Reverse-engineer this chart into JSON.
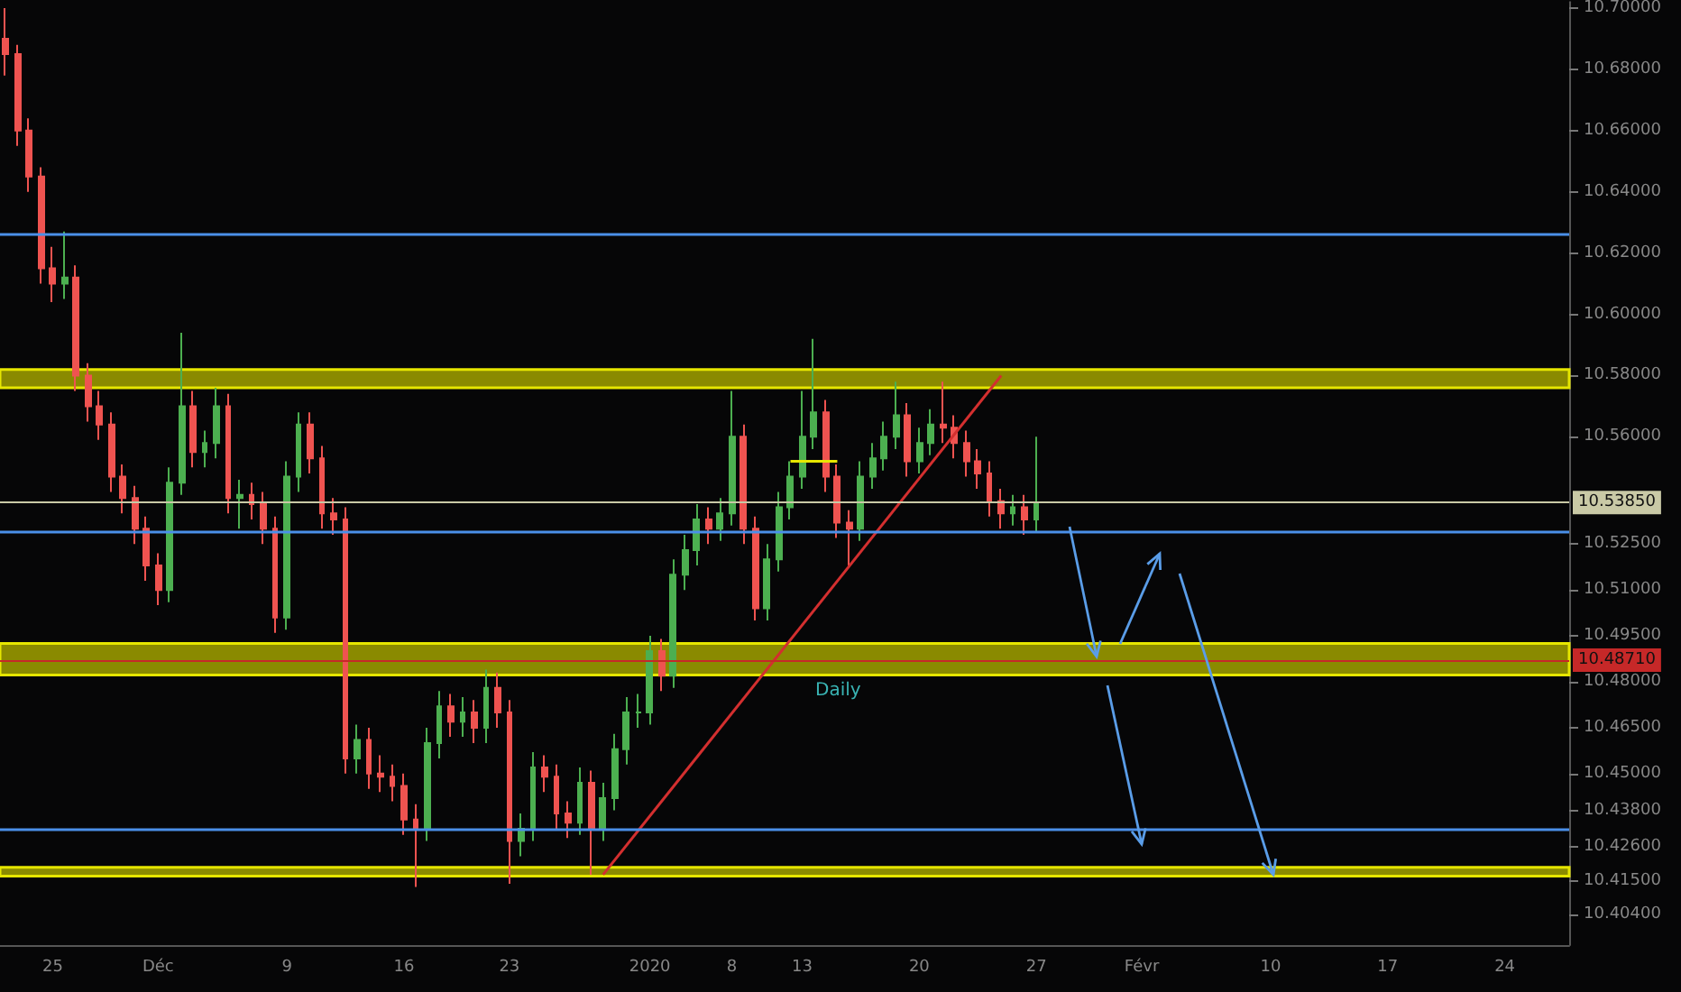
{
  "chart_data": {
    "type": "candlestick",
    "categories": [
      null,
      null,
      null,
      null,
      "25",
      null,
      null,
      null,
      null,
      null,
      null,
      null,
      null,
      "Déc",
      null,
      null,
      null,
      null,
      null,
      null,
      null,
      null,
      null,
      null,
      "9",
      null,
      null,
      null,
      null,
      null,
      null,
      null,
      null,
      null,
      "16",
      null,
      null,
      null,
      null,
      null,
      null,
      null,
      null,
      "23",
      null,
      null,
      null,
      null,
      null,
      null,
      null,
      null,
      null,
      null,
      null,
      "2020",
      null,
      null,
      null,
      null,
      null,
      null,
      "8",
      null,
      null,
      null,
      null,
      null,
      "13",
      null,
      null,
      null,
      null,
      null,
      null,
      null,
      null,
      null,
      "20",
      null,
      null,
      null,
      null,
      null,
      null,
      null,
      null,
      null,
      "27",
      null,
      null,
      null,
      null,
      null,
      null,
      null,
      null,
      "Févr",
      null,
      null,
      null,
      null,
      null,
      null,
      null,
      null,
      null,
      null,
      "10",
      null,
      null,
      null,
      null,
      null,
      null,
      null,
      null,
      null,
      "17",
      null,
      null,
      null,
      null,
      null,
      null,
      null,
      null,
      null,
      "24",
      null,
      null,
      null,
      null,
      null
    ],
    "ohlc": [
      [
        10.69,
        10.7,
        10.678,
        10.685
      ],
      [
        10.685,
        10.688,
        10.655,
        10.66
      ],
      [
        10.66,
        10.664,
        10.64,
        10.645
      ],
      [
        10.645,
        10.648,
        10.61,
        10.615
      ],
      [
        10.615,
        10.622,
        10.604,
        10.61
      ],
      [
        10.61,
        10.627,
        10.605,
        10.612
      ],
      [
        10.612,
        10.616,
        10.575,
        10.58
      ],
      [
        10.58,
        10.584,
        10.565,
        10.57
      ],
      [
        10.57,
        10.575,
        10.559,
        10.564
      ],
      [
        10.564,
        10.568,
        10.542,
        10.547
      ],
      [
        10.547,
        10.551,
        10.535,
        10.54
      ],
      [
        10.54,
        10.544,
        10.525,
        10.53
      ],
      [
        10.53,
        10.534,
        10.513,
        10.518
      ],
      [
        10.518,
        10.522,
        10.505,
        10.51
      ],
      [
        10.51,
        10.55,
        10.506,
        10.545
      ],
      [
        10.545,
        10.594,
        10.541,
        10.57
      ],
      [
        10.57,
        10.575,
        10.55,
        10.555
      ],
      [
        10.555,
        10.562,
        10.55,
        10.558
      ],
      [
        10.558,
        10.576,
        10.553,
        10.57
      ],
      [
        10.57,
        10.574,
        10.535,
        10.54
      ],
      [
        10.54,
        10.546,
        10.53,
        10.541
      ],
      [
        10.541,
        10.545,
        10.533,
        10.538
      ],
      [
        10.538,
        10.542,
        10.525,
        10.53
      ],
      [
        10.53,
        10.534,
        10.496,
        10.501
      ],
      [
        10.501,
        10.552,
        10.497,
        10.547
      ],
      [
        10.547,
        10.568,
        10.542,
        10.564
      ],
      [
        10.564,
        10.568,
        10.548,
        10.553
      ],
      [
        10.553,
        10.557,
        10.53,
        10.535
      ],
      [
        10.535,
        10.54,
        10.528,
        10.533
      ],
      [
        10.533,
        10.537,
        10.45,
        10.455
      ],
      [
        10.455,
        10.466,
        10.45,
        10.461
      ],
      [
        10.461,
        10.465,
        10.445,
        10.45
      ],
      [
        10.45,
        10.456,
        10.444,
        10.449
      ],
      [
        10.449,
        10.453,
        10.441,
        10.446
      ],
      [
        10.446,
        10.45,
        10.43,
        10.435
      ],
      [
        10.435,
        10.44,
        10.413,
        10.432
      ],
      [
        10.432,
        10.465,
        10.428,
        10.46
      ],
      [
        10.46,
        10.477,
        10.455,
        10.472
      ],
      [
        10.472,
        10.476,
        10.462,
        10.467
      ],
      [
        10.467,
        10.475,
        10.462,
        10.47
      ],
      [
        10.47,
        10.474,
        10.46,
        10.465
      ],
      [
        10.465,
        10.484,
        10.46,
        10.478
      ],
      [
        10.478,
        10.483,
        10.465,
        10.47
      ],
      [
        10.47,
        10.474,
        10.414,
        10.428
      ],
      [
        10.428,
        10.437,
        10.423,
        10.432
      ],
      [
        10.432,
        10.457,
        10.428,
        10.452
      ],
      [
        10.452,
        10.456,
        10.444,
        10.449
      ],
      [
        10.449,
        10.453,
        10.432,
        10.437
      ],
      [
        10.437,
        10.441,
        10.429,
        10.434
      ],
      [
        10.434,
        10.452,
        10.43,
        10.447
      ],
      [
        10.447,
        10.451,
        10.417,
        10.432
      ],
      [
        10.432,
        10.447,
        10.428,
        10.442
      ],
      [
        10.442,
        10.463,
        10.438,
        10.458
      ],
      [
        10.458,
        10.475,
        10.453,
        10.47
      ],
      [
        10.47,
        10.476,
        10.465,
        10.47
      ],
      [
        10.47,
        10.495,
        10.466,
        10.49
      ],
      [
        10.49,
        10.494,
        10.477,
        10.482
      ],
      [
        10.482,
        10.52,
        10.478,
        10.515
      ],
      [
        10.515,
        10.528,
        10.51,
        10.523
      ],
      [
        10.523,
        10.538,
        10.518,
        10.533
      ],
      [
        10.533,
        10.537,
        10.525,
        10.53
      ],
      [
        10.53,
        10.54,
        10.526,
        10.535
      ],
      [
        10.535,
        10.575,
        10.531,
        10.56
      ],
      [
        10.56,
        10.564,
        10.525,
        10.53
      ],
      [
        10.53,
        10.534,
        10.5,
        10.504
      ],
      [
        10.504,
        10.525,
        10.5,
        10.52
      ],
      [
        10.52,
        10.542,
        10.516,
        10.537
      ],
      [
        10.537,
        10.552,
        10.533,
        10.547
      ],
      [
        10.547,
        10.575,
        10.543,
        10.56
      ],
      [
        10.56,
        10.592,
        10.556,
        10.568
      ],
      [
        10.568,
        10.572,
        10.542,
        10.547
      ],
      [
        10.547,
        10.551,
        10.527,
        10.532
      ],
      [
        10.532,
        10.536,
        10.518,
        10.53
      ],
      [
        10.53,
        10.552,
        10.526,
        10.547
      ],
      [
        10.547,
        10.558,
        10.543,
        10.553
      ],
      [
        10.553,
        10.565,
        10.549,
        10.56
      ],
      [
        10.56,
        10.578,
        10.556,
        10.567
      ],
      [
        10.567,
        10.571,
        10.547,
        10.552
      ],
      [
        10.552,
        10.563,
        10.548,
        10.558
      ],
      [
        10.558,
        10.569,
        10.554,
        10.564
      ],
      [
        10.564,
        10.578,
        10.558,
        10.563
      ],
      [
        10.563,
        10.567,
        10.553,
        10.558
      ],
      [
        10.558,
        10.562,
        10.547,
        10.552
      ],
      [
        10.552,
        10.556,
        10.543,
        10.548
      ],
      [
        10.548,
        10.552,
        10.534,
        10.539
      ],
      [
        10.539,
        10.543,
        10.53,
        10.535
      ],
      [
        10.535,
        10.541,
        10.531,
        10.537
      ],
      [
        10.537,
        10.541,
        10.528,
        10.533
      ],
      [
        10.533,
        10.56,
        10.529,
        10.5385
      ],
      null,
      null,
      null,
      null,
      null,
      null,
      null,
      null,
      null,
      null,
      null,
      null,
      null,
      null,
      null,
      null,
      null,
      null,
      null,
      null,
      null,
      null,
      null,
      null,
      null,
      null,
      null,
      null,
      null,
      null,
      null,
      null,
      null,
      null,
      null,
      null,
      null,
      null,
      null,
      null,
      null,
      null,
      null,
      null,
      null
    ],
    "series": [
      {
        "type": "line",
        "color": "#d32f2f",
        "values": [
          null,
          null,
          null,
          null,
          null,
          null,
          null,
          null,
          null,
          null,
          null,
          null,
          null,
          null,
          null,
          null,
          null,
          null,
          null,
          null,
          null,
          null,
          null,
          null,
          null,
          null,
          null,
          null,
          null,
          null,
          null,
          null,
          null,
          null,
          null,
          null,
          null,
          null,
          null,
          null,
          null,
          null,
          null,
          null,
          null,
          null,
          null,
          null,
          null,
          null,
          null,
          10.417,
          null,
          null,
          null,
          null,
          null,
          null,
          null,
          null,
          null,
          null,
          null,
          null,
          null,
          null,
          null,
          null,
          null,
          null,
          null,
          null,
          null,
          null,
          null,
          null,
          null,
          null,
          null,
          null,
          null,
          null,
          null,
          null,
          null,
          10.58,
          null,
          null,
          null,
          null,
          null,
          null,
          null,
          null,
          null,
          null,
          null,
          null,
          null,
          null,
          null,
          null,
          null,
          null,
          null,
          null,
          null,
          null,
          null,
          null,
          null,
          null,
          null,
          null,
          null,
          null,
          null,
          null,
          null,
          null,
          null,
          null,
          null,
          null,
          null,
          null,
          null,
          null,
          null,
          null,
          null,
          null,
          null,
          null
        ]
      },
      {
        "type": "line",
        "color": "#e6e600",
        "values": [
          null,
          null,
          null,
          null,
          null,
          null,
          null,
          null,
          null,
          null,
          null,
          null,
          null,
          null,
          null,
          null,
          null,
          null,
          null,
          null,
          null,
          null,
          null,
          null,
          null,
          null,
          null,
          null,
          null,
          null,
          null,
          null,
          null,
          null,
          null,
          null,
          null,
          null,
          null,
          null,
          null,
          null,
          null,
          null,
          null,
          null,
          null,
          null,
          null,
          null,
          null,
          null,
          null,
          null,
          null,
          null,
          null,
          null,
          null,
          null,
          null,
          null,
          null,
          null,
          null,
          null,
          null,
          10.552,
          10.552,
          10.552,
          10.552,
          10.552,
          null,
          null,
          null,
          null,
          null,
          null,
          null,
          null,
          null,
          null,
          null,
          null,
          null,
          null,
          null,
          null,
          null,
          null,
          null,
          null,
          null,
          null,
          null,
          null,
          null,
          null,
          null,
          null,
          null,
          null,
          null,
          null,
          null,
          null,
          null,
          null,
          null,
          null,
          null,
          null,
          null,
          null,
          null,
          null,
          null,
          null,
          null,
          null,
          null,
          null,
          null,
          null,
          null,
          null,
          null,
          null,
          null,
          null,
          null,
          null,
          null,
          null
        ]
      }
    ],
    "ylim": [
      10.394,
      10.702
    ],
    "yticks": [
      {
        "value": 10.7,
        "label": "10.70000"
      },
      {
        "value": 10.68,
        "label": "10.68000"
      },
      {
        "value": 10.66,
        "label": "10.66000"
      },
      {
        "value": 10.64,
        "label": "10.64000"
      },
      {
        "value": 10.62,
        "label": "10.62000"
      },
      {
        "value": 10.6,
        "label": "10.60000"
      },
      {
        "value": 10.58,
        "label": "10.58000"
      },
      {
        "value": 10.56,
        "label": "10.56000"
      },
      {
        "value": 10.525,
        "label": "10.52500"
      },
      {
        "value": 10.51,
        "label": "10.51000"
      },
      {
        "value": 10.495,
        "label": "10.49500"
      },
      {
        "value": 10.48,
        "label": "10.48000"
      },
      {
        "value": 10.465,
        "label": "10.46500"
      },
      {
        "value": 10.45,
        "label": "10.45000"
      },
      {
        "value": 10.438,
        "label": "10.43800"
      },
      {
        "value": 10.426,
        "label": "10.42600"
      },
      {
        "value": 10.415,
        "label": "10.41500"
      },
      {
        "value": 10.404,
        "label": "10.40400"
      }
    ],
    "ref_lines": [
      {
        "axis": "y",
        "value": 10.626,
        "color": "#4a8fe8"
      },
      {
        "axis": "y",
        "value": 10.529,
        "color": "#4a8fe8"
      },
      {
        "axis": "y",
        "value": 10.432,
        "color": "#4a8fe8"
      },
      {
        "axis": "y",
        "value": 10.4871,
        "label": "10.48710",
        "color": "#c62828"
      },
      {
        "axis": "y",
        "value": 10.5385,
        "label": "10.53850",
        "color": "#c9c9a6"
      }
    ],
    "bands": [
      {
        "axis": "y",
        "from": 10.576,
        "to": 10.582,
        "color": "#8a8a00"
      },
      {
        "axis": "y",
        "from": 10.4822,
        "to": 10.4925,
        "color": "#8a8a00"
      },
      {
        "axis": "y",
        "from": 10.4165,
        "to": 10.4194,
        "color": "#8a8a00"
      }
    ],
    "annotations": [
      "Daily"
    ],
    "grid": false
  }
}
